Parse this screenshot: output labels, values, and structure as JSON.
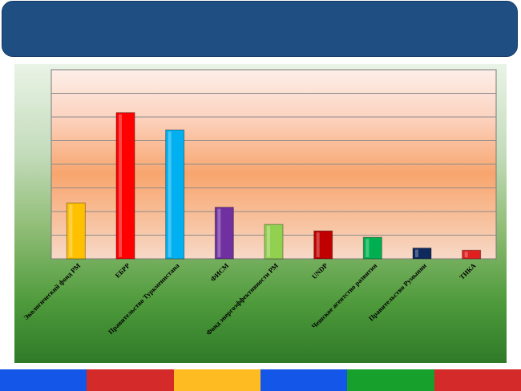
{
  "chart_data": {
    "type": "bar",
    "categories": [
      "Экологический фонд РМ",
      "ЕБРР",
      "Правительство Туркменистана",
      "ФИСМ",
      "Фонд энергоэффективности РМ",
      "UNDP",
      "Чешское агентство развития",
      "Правительство Румынии",
      "ТИКА"
    ],
    "values": [
      2.6,
      6.8,
      6.0,
      2.4,
      1.6,
      1.3,
      1.0,
      0.5,
      0.4
    ],
    "ylim": [
      0,
      8.8
    ],
    "grid": true,
    "colors": [
      "#ffc000",
      "#ff0000",
      "#00b0f0",
      "#7030a0",
      "#92d050",
      "#c00000",
      "#00b050",
      "#0e2a5c",
      "#e02020"
    ],
    "plot_background": [
      "#fde9e4",
      "#fbc9a9",
      "#f7a06a",
      "#f5d2bb"
    ]
  },
  "footer_colors": [
    "#1356e8",
    "#d42a2a",
    "#ffbb22",
    "#1356e8",
    "#18a02c",
    "#d42a2a"
  ]
}
